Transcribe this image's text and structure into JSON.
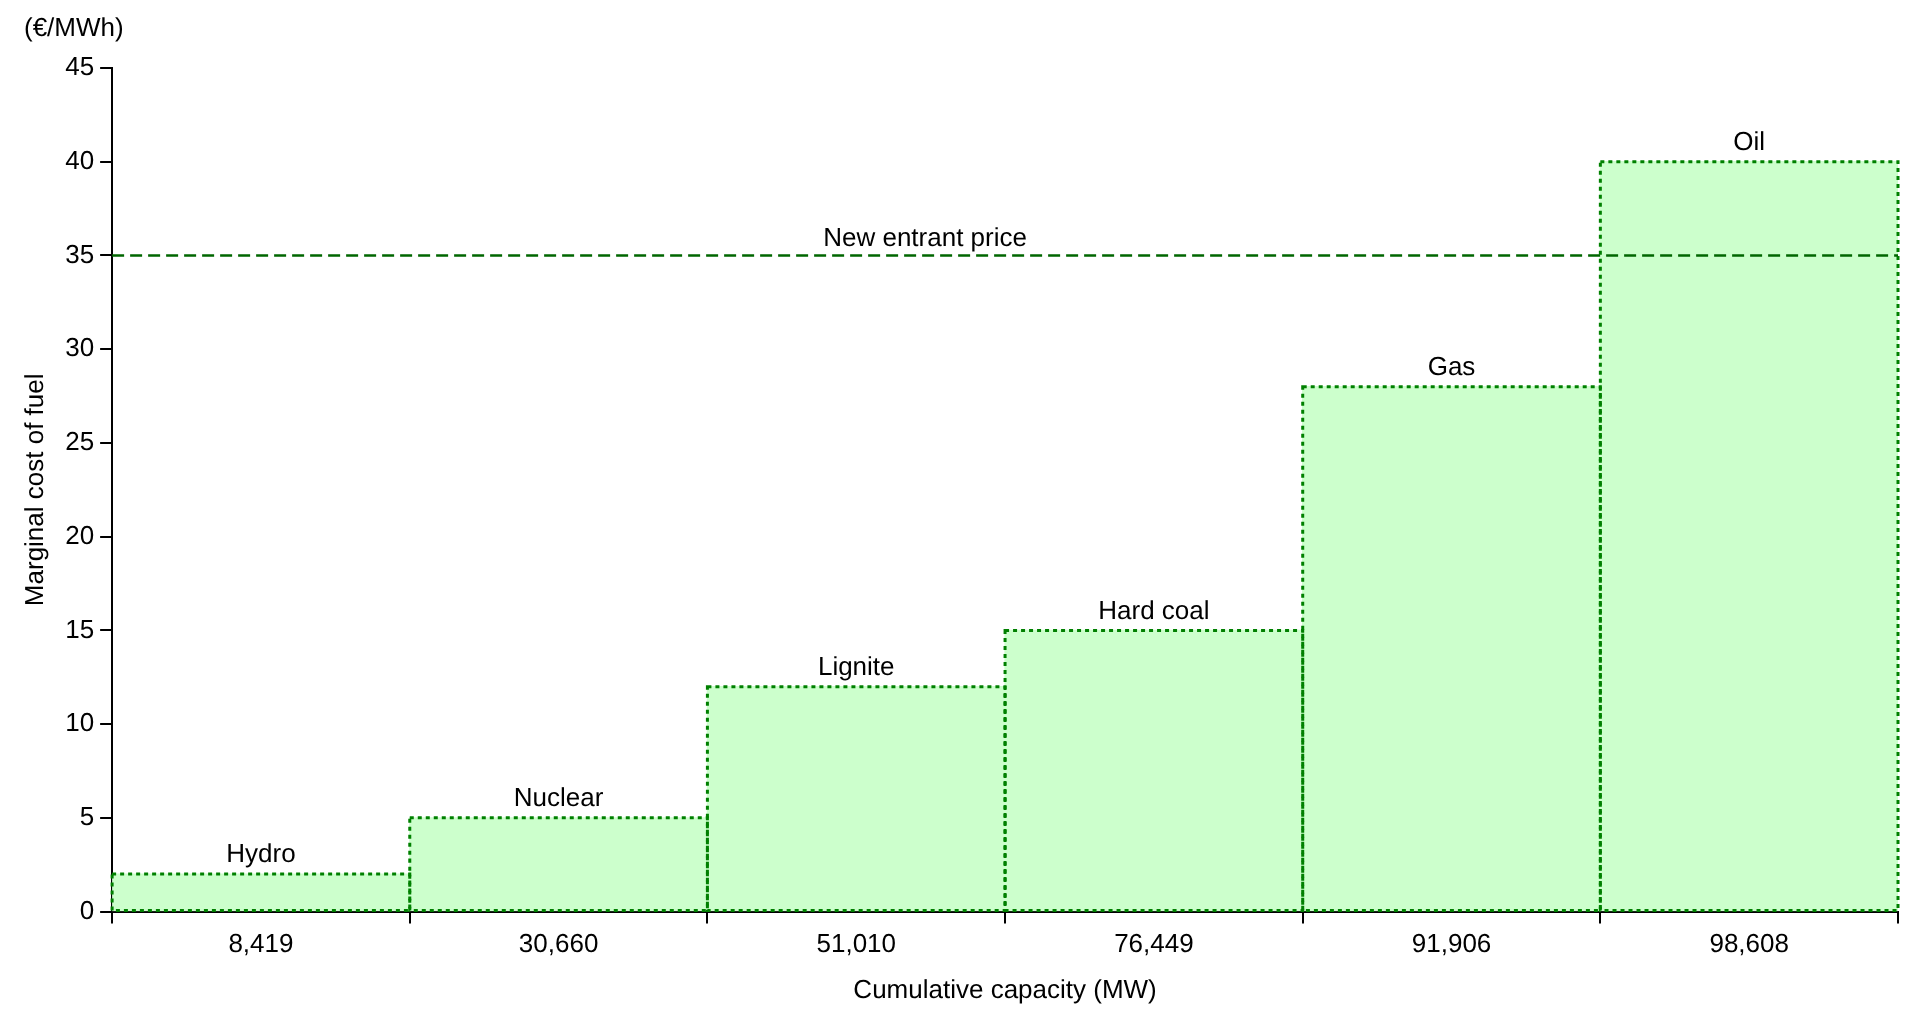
{
  "chart_data": {
    "type": "bar",
    "xlabel": "Cumulative capacity (MW)",
    "ylabel": "Marginal cost of fuel",
    "categories": [
      "8,419",
      "30,660",
      "51,010",
      "76,449",
      "91,906",
      "98,608"
    ],
    "series": [
      {
        "color": "#ccffcc",
        "values": [
          2,
          5,
          12,
          15,
          28,
          40
        ]
      }
    ],
    "ylim": [
      0,
      45
    ],
    "yticks": [
      0,
      5,
      10,
      15,
      20,
      25,
      30,
      35,
      40,
      45
    ],
    "grid": false,
    "legend": false,
    "ref_lines": [
      {
        "axis": "y",
        "value": 35,
        "label": "New entrant price",
        "color": "#006600",
        "line_style": "dashed"
      }
    ],
    "annotations": [
      "(€/MWh)",
      {
        "text": "Hydro",
        "x": "8,419",
        "y": 2
      },
      {
        "text": "Nuclear",
        "x": "30,660",
        "y": 5
      },
      {
        "text": "Lignite",
        "x": "51,010",
        "y": 12
      },
      {
        "text": "Hard coal",
        "x": "76,449",
        "y": 15
      },
      {
        "text": "Gas",
        "x": "91,906",
        "y": 28
      },
      {
        "text": "Oil",
        "x": "98,608",
        "y": 40
      }
    ]
  }
}
